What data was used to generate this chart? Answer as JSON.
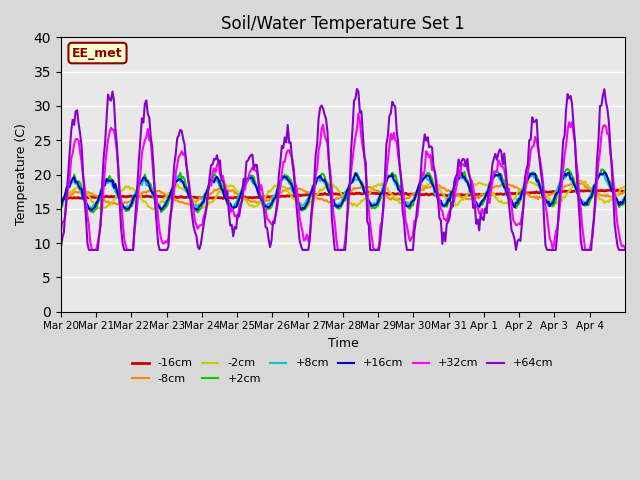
{
  "title": "Soil/Water Temperature Set 1",
  "xlabel": "Time",
  "ylabel": "Temperature (C)",
  "ylim": [
    0,
    40
  ],
  "yticks": [
    0,
    5,
    10,
    15,
    20,
    25,
    30,
    35,
    40
  ],
  "fig_bg_color": "#d8d8d8",
  "ax_bg_color": "#e8e8e8",
  "annotation_text": "EE_met",
  "annotation_bg": "#ffffcc",
  "annotation_border": "#8b0000",
  "series_colors": {
    "-16cm": "#cc0000",
    "-8cm": "#ff8800",
    "-2cm": "#cccc00",
    "+2cm": "#00cc00",
    "+8cm": "#00cccc",
    "+16cm": "#0000cc",
    "+32cm": "#ff00ff",
    "+64cm": "#8800cc"
  },
  "series_linewidths": {
    "-16cm": 2.0,
    "-8cm": 1.5,
    "-2cm": 1.5,
    "+2cm": 1.5,
    "+8cm": 1.5,
    "+16cm": 1.5,
    "+32cm": 1.5,
    "+64cm": 1.5
  },
  "x_tick_positions": [
    0,
    1,
    2,
    3,
    4,
    5,
    6,
    7,
    8,
    9,
    10,
    11,
    12,
    13,
    14,
    15
  ],
  "x_tick_labels": [
    "Mar 20",
    "Mar 21",
    "Mar 22",
    "Mar 23",
    "Mar 24",
    "Mar 25",
    "Mar 26",
    "Mar 27",
    "Mar 28",
    "Mar 29",
    "Mar 30",
    "Mar 31",
    "Apr 1",
    "Apr 2",
    "Apr 3",
    "Apr 4"
  ],
  "n_days": 16,
  "grid_color": "white",
  "grid_linewidth": 1.0
}
